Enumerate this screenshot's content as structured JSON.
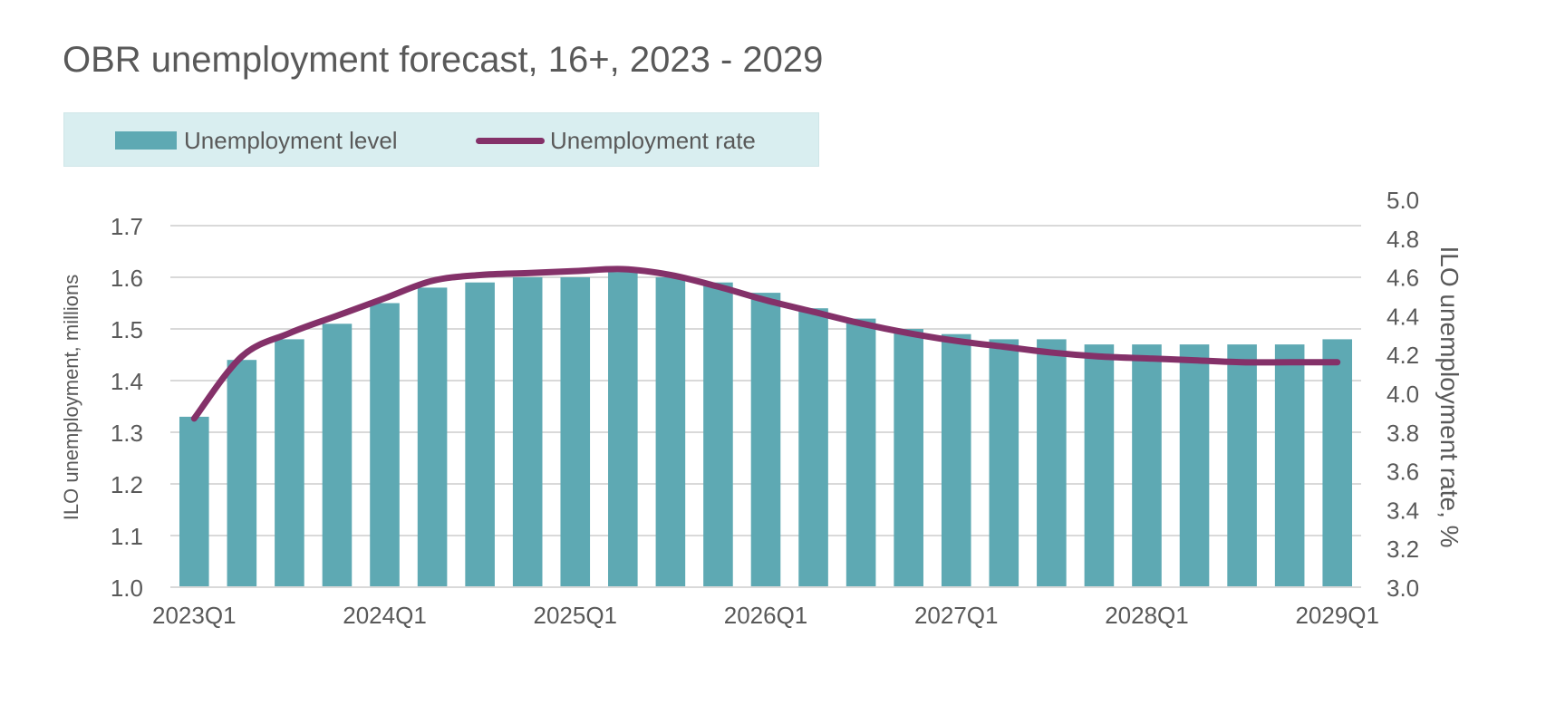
{
  "title": "OBR unemployment forecast, 16+, 2023 - 2029",
  "legend": {
    "bar_label": "Unemployment level",
    "line_label": "Unemployment rate"
  },
  "colors": {
    "bar": "#5ea9b3",
    "line": "#843169",
    "legend_bg": "#d9eef0",
    "grid": "#d9d9d9",
    "text": "#595959"
  },
  "chart_data": {
    "type": "bar",
    "title": "OBR unemployment forecast, 16+, 2023 - 2029",
    "categories": [
      "2023Q1",
      "2023Q2",
      "2023Q3",
      "2023Q4",
      "2024Q1",
      "2024Q2",
      "2024Q3",
      "2024Q4",
      "2025Q1",
      "2025Q2",
      "2025Q3",
      "2025Q4",
      "2026Q1",
      "2026Q2",
      "2026Q3",
      "2026Q4",
      "2027Q1",
      "2027Q2",
      "2027Q3",
      "2027Q4",
      "2028Q1",
      "2028Q2",
      "2028Q3",
      "2028Q4",
      "2029Q1"
    ],
    "x_tick_labels": [
      "2023Q1",
      "2024Q1",
      "2025Q1",
      "2026Q1",
      "2027Q1",
      "2028Q1",
      "2029Q1"
    ],
    "series": [
      {
        "name": "Unemployment level",
        "type": "bar",
        "axis": "left",
        "values": [
          1.33,
          1.44,
          1.48,
          1.51,
          1.55,
          1.58,
          1.59,
          1.6,
          1.6,
          1.61,
          1.6,
          1.59,
          1.57,
          1.54,
          1.52,
          1.5,
          1.49,
          1.48,
          1.48,
          1.47,
          1.47,
          1.47,
          1.47,
          1.47,
          1.48
        ]
      },
      {
        "name": "Unemployment rate",
        "type": "line",
        "axis": "right",
        "values": [
          3.87,
          4.19,
          4.31,
          4.4,
          4.49,
          4.58,
          4.61,
          4.62,
          4.63,
          4.64,
          4.61,
          4.55,
          4.48,
          4.42,
          4.36,
          4.31,
          4.27,
          4.24,
          4.21,
          4.19,
          4.18,
          4.17,
          4.16,
          4.16,
          4.16
        ]
      }
    ],
    "ylabel": "ILO unemployment, millions",
    "ylim": [
      1.0,
      1.7
    ],
    "yticks": [
      "1.0",
      "1.1",
      "1.2",
      "1.3",
      "1.4",
      "1.5",
      "1.6",
      "1.7"
    ],
    "y2label": "ILO unemployment rate, %",
    "y2lim": [
      3.0,
      5.0
    ],
    "y2ticks": [
      "3.0",
      "3.2",
      "3.4",
      "3.6",
      "3.8",
      "4.0",
      "4.2",
      "4.4",
      "4.6",
      "4.8",
      "5.0"
    ],
    "grid": true,
    "legend_position": "top-left"
  }
}
